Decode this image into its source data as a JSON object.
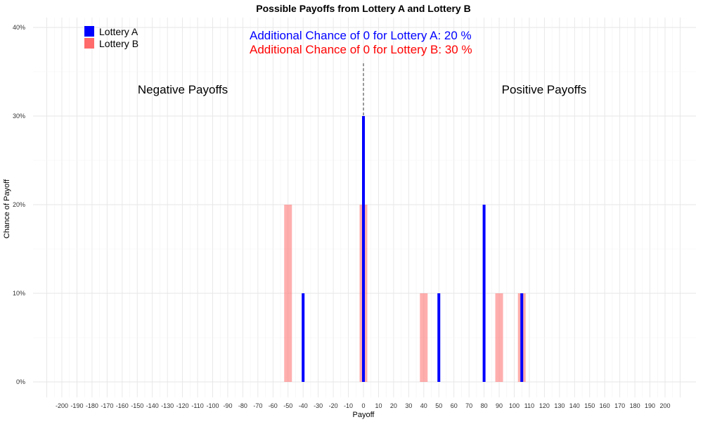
{
  "chart_data": {
    "type": "bar",
    "title": "Possible Payoffs from Lottery A and Lottery B",
    "xlabel": "Payoff",
    "ylabel": "Chance of Payoff",
    "xlim": [
      -210,
      210
    ],
    "ylim": [
      0,
      40
    ],
    "x_ticks": [
      "-200",
      "-190",
      "-180",
      "-170",
      "-160",
      "-150",
      "-140",
      "-130",
      "-120",
      "-110",
      "-100",
      "-90",
      "-80",
      "-70",
      "-60",
      "-50",
      "-40",
      "-30",
      "-20",
      "-10",
      "0",
      "10",
      "20",
      "30",
      "40",
      "50",
      "60",
      "70",
      "80",
      "90",
      "100",
      "110",
      "120",
      "130",
      "140",
      "150",
      "160",
      "170",
      "180",
      "190",
      "200"
    ],
    "y_ticks": [
      "0%",
      "10%",
      "20%",
      "30%",
      "40%"
    ],
    "grid": true,
    "legend": {
      "position": "top-left"
    },
    "series": [
      {
        "name": "Lottery A",
        "color": "#0000ff",
        "points": [
          {
            "x": -40,
            "y": 10
          },
          {
            "x": 0,
            "y": 30
          },
          {
            "x": 50,
            "y": 10
          },
          {
            "x": 80,
            "y": 20
          },
          {
            "x": 105,
            "y": 10
          }
        ]
      },
      {
        "name": "Lottery B",
        "color": "#ff6b6b",
        "points": [
          {
            "x": -50,
            "y": 20
          },
          {
            "x": 0,
            "y": 20
          },
          {
            "x": 40,
            "y": 10
          },
          {
            "x": 90,
            "y": 10
          },
          {
            "x": 105,
            "y": 10
          }
        ]
      }
    ],
    "annotations": {
      "line_a": "Additional Chance of 0 for Lottery A:  20 %",
      "line_b": "Additional Chance of 0 for Lottery B:  30 %",
      "negative": "Negative Payoffs",
      "positive": "Positive Payoffs"
    }
  }
}
